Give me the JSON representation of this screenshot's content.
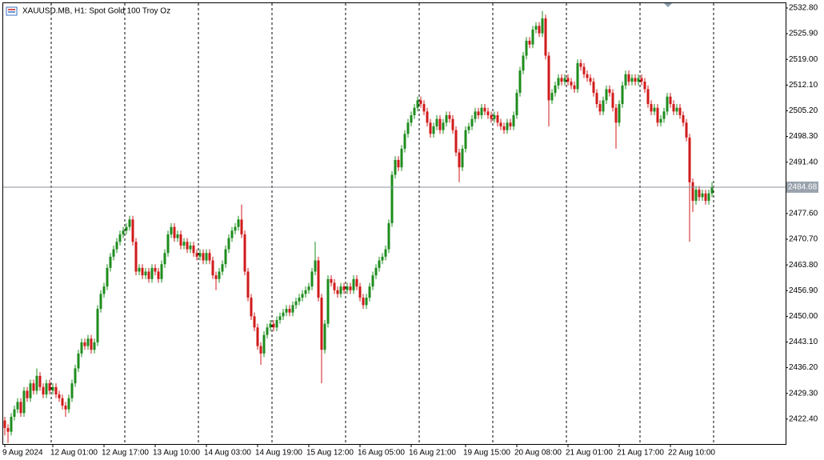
{
  "chart_data": {
    "type": "candlestick",
    "title": "XAUUSD.MB, H1:  Spot Gold 100 Troy Oz",
    "up_color": "#1e8c1e",
    "down_color": "#d01a1a",
    "ylim": [
      2415.7,
      2534.3
    ],
    "yticks": [
      {
        "value": 2532.8,
        "label": "2532.80"
      },
      {
        "value": 2525.9,
        "label": "2525.90"
      },
      {
        "value": 2519,
        "label": "2519.00"
      },
      {
        "value": 2512.1,
        "label": "2512.10"
      },
      {
        "value": 2505.2,
        "label": "2505.20"
      },
      {
        "value": 2498.3,
        "label": "2498.30"
      },
      {
        "value": 2491.4,
        "label": "2491.40"
      },
      {
        "value": 2477.6,
        "label": "2477.60"
      },
      {
        "value": 2470.7,
        "label": "2470.70"
      },
      {
        "value": 2463.8,
        "label": "2463.80"
      },
      {
        "value": 2456.9,
        "label": "2456.90"
      },
      {
        "value": 2450,
        "label": "2450.00"
      },
      {
        "value": 2443.1,
        "label": "2443.10"
      },
      {
        "value": 2436.2,
        "label": "2436.20"
      },
      {
        "value": 2429.3,
        "label": "2429.30"
      },
      {
        "value": 2422.4,
        "label": "2422.40"
      }
    ],
    "last_price": 2484.68,
    "x": [
      "9 Aug 2024",
      null,
      null,
      null,
      null,
      null,
      null,
      null,
      null,
      null,
      null,
      null,
      null,
      null,
      null,
      "12 Aug 01:00",
      null,
      null,
      null,
      null,
      null,
      null,
      null,
      null,
      null,
      null,
      null,
      null,
      null,
      null,
      null,
      "12 Aug 17:00",
      null,
      null,
      null,
      null,
      null,
      null,
      null,
      null,
      null,
      null,
      null,
      null,
      null,
      null,
      null,
      "13 Aug 10:00",
      null,
      null,
      null,
      null,
      null,
      null,
      null,
      null,
      null,
      null,
      null,
      null,
      null,
      null,
      null,
      "14 Aug 03:00",
      null,
      null,
      null,
      null,
      null,
      null,
      null,
      null,
      null,
      null,
      null,
      null,
      null,
      null,
      null,
      "14 Aug 19:00",
      null,
      null,
      null,
      null,
      null,
      null,
      null,
      null,
      null,
      null,
      null,
      null,
      null,
      null,
      null,
      "15 Aug 12:00",
      null,
      null,
      null,
      null,
      null,
      null,
      null,
      null,
      null,
      null,
      null,
      null,
      null,
      null,
      null,
      "16 Aug 05:00",
      null,
      null,
      null,
      null,
      null,
      null,
      null,
      null,
      null,
      null,
      null,
      null,
      null,
      null,
      null,
      "16 Aug 21:00",
      null,
      null,
      null,
      null,
      null,
      null,
      null,
      null,
      null,
      null,
      null,
      null,
      null,
      null,
      null,
      null,
      "19 Aug 15:00",
      null,
      null,
      null,
      null,
      null,
      null,
      null,
      null,
      null,
      null,
      null,
      null,
      null,
      null,
      null,
      "20 Aug 08:00",
      null,
      null,
      null,
      null,
      null,
      null,
      null,
      null,
      null,
      null,
      null,
      null,
      null,
      null,
      null,
      "21 Aug 01:00",
      null,
      null,
      null,
      null,
      null,
      null,
      null,
      null,
      null,
      null,
      null,
      null,
      null,
      null,
      null,
      "21 Aug 17:00",
      null,
      null,
      null,
      null,
      null,
      null,
      null,
      null,
      null,
      null,
      null,
      null,
      null,
      null,
      null,
      "22 Aug 10:00",
      null,
      null,
      null,
      null,
      null,
      null,
      null,
      null,
      null,
      null,
      null,
      null,
      null
    ],
    "open": [
      2422,
      2420,
      2419,
      2423,
      2425,
      2427,
      2424,
      2430,
      2428,
      2432,
      2430,
      2434,
      2431,
      2429,
      2432,
      2430,
      2431,
      2429,
      2428,
      2426,
      2425,
      2428,
      2432,
      2436,
      2440,
      2443,
      2442,
      2444,
      2441,
      2443,
      2452,
      2456,
      2458,
      2463,
      2466,
      2468,
      2470,
      2472,
      2473,
      2474,
      2476,
      2470,
      2462,
      2463,
      2461,
      2462,
      2460,
      2463,
      2462,
      2460,
      2464,
      2467,
      2472,
      2474,
      2471,
      2472,
      2469,
      2470,
      2468,
      2469,
      2467,
      2466,
      2467,
      2465,
      2467,
      2465,
      2461,
      2460,
      2462,
      2464,
      2468,
      2471,
      2473,
      2474,
      2476,
      2472,
      2462,
      2455,
      2450,
      2447,
      2442,
      2440,
      2445,
      2447,
      2448,
      2447,
      2449,
      2450,
      2451,
      2452,
      2451,
      2453,
      2454,
      2455,
      2456,
      2457,
      2458,
      2462,
      2465,
      2455,
      2441,
      2448,
      2460,
      2459,
      2457,
      2456,
      2458,
      2457,
      2458,
      2457,
      2460,
      2458,
      2455,
      2453,
      2455,
      2458,
      2461,
      2463,
      2465,
      2466,
      2468,
      2475,
      2488,
      2492,
      2490,
      2495,
      2499,
      2502,
      2504,
      2506,
      2508,
      2507,
      2505,
      2502,
      2499,
      2501,
      2503,
      2500,
      2502,
      2504,
      2503,
      2500,
      2494,
      2490,
      2495,
      2500,
      2501,
      2503,
      2505,
      2504,
      2506,
      2505,
      2504,
      2503,
      2504,
      2502,
      2501,
      2500,
      2502,
      2501,
      2504,
      2510,
      2516,
      2520,
      2524,
      2523,
      2527,
      2528,
      2526,
      2530,
      2520,
      2508,
      2510,
      2512,
      2514,
      2513,
      2514,
      2513,
      2512,
      2511,
      2518,
      2517,
      2515,
      2514,
      2513,
      2510,
      2507,
      2505,
      2508,
      2511,
      2510,
      2506,
      2502,
      2507,
      2512,
      2515,
      2513,
      2514,
      2513,
      2514,
      2513,
      2511,
      2507,
      2505,
      2506,
      2502,
      2503,
      2505,
      2509,
      2507,
      2505,
      2506,
      2504,
      2502,
      2498,
      2486,
      2481,
      2484,
      2482,
      2483,
      2481,
      2483
    ],
    "high": [
      2423,
      2421,
      2424,
      2426,
      2428,
      2428,
      2431,
      2431,
      2433,
      2433,
      2436,
      2435,
      2432,
      2433,
      2433,
      2432,
      2432,
      2430,
      2429,
      2427,
      2429,
      2433,
      2437,
      2441,
      2444,
      2444,
      2445,
      2445,
      2444,
      2453,
      2457,
      2459,
      2464,
      2467,
      2469,
      2471,
      2473,
      2474,
      2475,
      2477,
      2477,
      2471,
      2464,
      2464,
      2463,
      2463,
      2464,
      2464,
      2463,
      2465,
      2468,
      2473,
      2475,
      2475,
      2473,
      2473,
      2471,
      2471,
      2470,
      2470,
      2468,
      2468,
      2468,
      2468,
      2468,
      2466,
      2462,
      2463,
      2465,
      2469,
      2472,
      2474,
      2475,
      2477,
      2480,
      2473,
      2463,
      2456,
      2451,
      2448,
      2443,
      2446,
      2448,
      2449,
      2449,
      2450,
      2451,
      2452,
      2453,
      2453,
      2454,
      2455,
      2456,
      2457,
      2458,
      2459,
      2463,
      2470,
      2466,
      2456,
      2449,
      2461,
      2461,
      2460,
      2458,
      2459,
      2459,
      2459,
      2459,
      2461,
      2461,
      2459,
      2456,
      2456,
      2459,
      2462,
      2464,
      2466,
      2467,
      2469,
      2476,
      2489,
      2493,
      2493,
      2496,
      2500,
      2503,
      2505,
      2507,
      2509,
      2509,
      2508,
      2506,
      2503,
      2502,
      2504,
      2504,
      2503,
      2505,
      2505,
      2504,
      2501,
      2495,
      2496,
      2501,
      2502,
      2504,
      2506,
      2506,
      2507,
      2507,
      2506,
      2505,
      2505,
      2505,
      2503,
      2502,
      2503,
      2503,
      2505,
      2511,
      2517,
      2521,
      2525,
      2525,
      2528,
      2529,
      2529,
      2532,
      2531,
      2521,
      2511,
      2513,
      2515,
      2515,
      2515,
      2515,
      2514,
      2513,
      2519,
      2519,
      2518,
      2516,
      2515,
      2514,
      2511,
      2508,
      2509,
      2512,
      2512,
      2511,
      2507,
      2508,
      2513,
      2516,
      2516,
      2515,
      2515,
      2515,
      2515,
      2514,
      2512,
      2508,
      2507,
      2507,
      2504,
      2506,
      2510,
      2510,
      2508,
      2507,
      2507,
      2505,
      2503,
      2499,
      2487,
      2485,
      2485,
      2484,
      2484,
      2484,
      2486
    ],
    "low": [
      2418,
      2416,
      2418,
      2422,
      2424,
      2423,
      2423,
      2427,
      2427,
      2429,
      2429,
      2430,
      2428,
      2428,
      2429,
      2429,
      2428,
      2427,
      2425,
      2423,
      2424,
      2427,
      2431,
      2435,
      2439,
      2441,
      2441,
      2440,
      2440,
      2442,
      2451,
      2455,
      2457,
      2462,
      2465,
      2467,
      2469,
      2471,
      2472,
      2473,
      2469,
      2461,
      2461,
      2460,
      2460,
      2459,
      2459,
      2461,
      2459,
      2459,
      2463,
      2466,
      2471,
      2470,
      2470,
      2468,
      2468,
      2467,
      2467,
      2466,
      2465,
      2465,
      2464,
      2464,
      2464,
      2460,
      2457,
      2459,
      2461,
      2463,
      2467,
      2470,
      2472,
      2473,
      2471,
      2461,
      2454,
      2449,
      2446,
      2441,
      2437,
      2439,
      2444,
      2446,
      2446,
      2446,
      2448,
      2449,
      2450,
      2450,
      2450,
      2452,
      2453,
      2454,
      2455,
      2456,
      2457,
      2461,
      2454,
      2432,
      2440,
      2447,
      2458,
      2456,
      2455,
      2455,
      2456,
      2456,
      2456,
      2456,
      2457,
      2454,
      2452,
      2452,
      2454,
      2457,
      2460,
      2462,
      2464,
      2465,
      2467,
      2474,
      2487,
      2489,
      2489,
      2494,
      2498,
      2501,
      2503,
      2505,
      2506,
      2504,
      2501,
      2498,
      2498,
      2500,
      2499,
      2499,
      2501,
      2502,
      2499,
      2493,
      2486,
      2489,
      2494,
      2499,
      2500,
      2502,
      2503,
      2503,
      2504,
      2503,
      2502,
      2502,
      2501,
      2500,
      2499,
      2499,
      2500,
      2500,
      2503,
      2509,
      2515,
      2519,
      2522,
      2522,
      2526,
      2525,
      2525,
      2519,
      2501,
      2507,
      2509,
      2511,
      2512,
      2512,
      2512,
      2511,
      2510,
      2510,
      2516,
      2514,
      2513,
      2512,
      2509,
      2506,
      2504,
      2504,
      2507,
      2509,
      2505,
      2495,
      2501,
      2506,
      2511,
      2512,
      2512,
      2512,
      2512,
      2512,
      2510,
      2506,
      2504,
      2504,
      2501,
      2501,
      2502,
      2504,
      2506,
      2504,
      2504,
      2503,
      2501,
      2497,
      2470,
      2478,
      2480,
      2481,
      2481,
      2480,
      2480,
      2482
    ],
    "close": [
      2420,
      2419,
      2423,
      2425,
      2427,
      2424,
      2430,
      2428,
      2432,
      2430,
      2434,
      2431,
      2429,
      2432,
      2430,
      2431,
      2429,
      2428,
      2426,
      2425,
      2428,
      2432,
      2436,
      2440,
      2443,
      2442,
      2444,
      2441,
      2443,
      2452,
      2456,
      2458,
      2463,
      2466,
      2468,
      2470,
      2472,
      2473,
      2474,
      2476,
      2470,
      2462,
      2463,
      2461,
      2462,
      2460,
      2463,
      2462,
      2460,
      2464,
      2467,
      2472,
      2474,
      2471,
      2472,
      2469,
      2470,
      2468,
      2469,
      2467,
      2466,
      2467,
      2465,
      2467,
      2465,
      2461,
      2460,
      2462,
      2464,
      2468,
      2471,
      2473,
      2474,
      2476,
      2472,
      2462,
      2455,
      2450,
      2447,
      2442,
      2440,
      2445,
      2447,
      2448,
      2447,
      2449,
      2450,
      2451,
      2452,
      2451,
      2453,
      2454,
      2455,
      2456,
      2457,
      2458,
      2462,
      2465,
      2455,
      2441,
      2448,
      2460,
      2459,
      2457,
      2456,
      2458,
      2457,
      2458,
      2457,
      2460,
      2458,
      2455,
      2453,
      2455,
      2458,
      2461,
      2463,
      2465,
      2466,
      2468,
      2475,
      2488,
      2492,
      2490,
      2495,
      2499,
      2502,
      2504,
      2506,
      2508,
      2507,
      2505,
      2502,
      2499,
      2501,
      2503,
      2500,
      2502,
      2504,
      2503,
      2500,
      2494,
      2490,
      2495,
      2500,
      2501,
      2503,
      2505,
      2504,
      2506,
      2505,
      2504,
      2503,
      2504,
      2502,
      2501,
      2500,
      2502,
      2501,
      2504,
      2510,
      2516,
      2520,
      2524,
      2523,
      2527,
      2528,
      2526,
      2530,
      2520,
      2508,
      2510,
      2512,
      2514,
      2513,
      2514,
      2513,
      2512,
      2511,
      2518,
      2517,
      2515,
      2514,
      2513,
      2510,
      2507,
      2505,
      2508,
      2511,
      2510,
      2506,
      2502,
      2507,
      2512,
      2515,
      2513,
      2514,
      2513,
      2514,
      2513,
      2511,
      2507,
      2505,
      2506,
      2502,
      2503,
      2505,
      2509,
      2507,
      2505,
      2506,
      2504,
      2502,
      2498,
      2486,
      2481,
      2484,
      2482,
      2483,
      2481,
      2483,
      2484.68
    ]
  }
}
